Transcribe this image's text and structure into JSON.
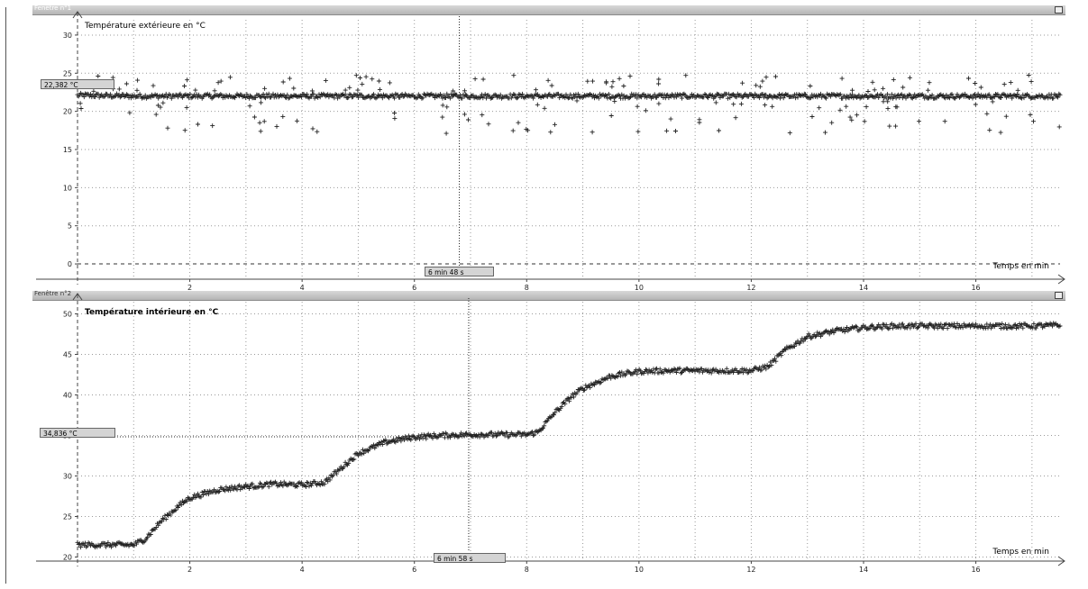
{
  "windows": [
    {
      "title": "Fenêtre n°1",
      "chart_title": "Température extérieure en °C",
      "x_axis_label": "Temps en min",
      "cursor_x_label": "6 min 48 s",
      "cursor_y_label": "22,382 °C",
      "x_ticks": [
        "2",
        "4",
        "6",
        "8",
        "10",
        "12",
        "14",
        "16"
      ],
      "y_ticks": [
        "0",
        "5",
        "10",
        "15",
        "20",
        "25",
        "30"
      ]
    },
    {
      "title": "Fenêtre n°2",
      "chart_title": "Température intérieure en °C",
      "x_axis_label": "Temps en min",
      "cursor_x_label": "6 min 58 s",
      "cursor_y_label": "34,836 °C",
      "x_ticks": [
        "2",
        "4",
        "6",
        "8",
        "10",
        "12",
        "14",
        "16"
      ],
      "y_ticks": [
        "20",
        "25",
        "30",
        "35",
        "40",
        "45",
        "50"
      ]
    }
  ],
  "chart_data": [
    {
      "type": "scatter",
      "title": "Température extérieure en °C",
      "xlabel": "Temps en min",
      "ylabel": "Température extérieure en °C",
      "xlim": [
        0,
        17.5
      ],
      "ylim": [
        -2,
        32
      ],
      "grid": true,
      "marker": "+",
      "series": [
        {
          "x": [
            0,
            1,
            2,
            3,
            4,
            5,
            6,
            7,
            8,
            9,
            10,
            11,
            12,
            13,
            14,
            15,
            16,
            17.5
          ],
          "y": [
            22.1,
            22.0,
            22.0,
            22.0,
            22.0,
            22.0,
            22.0,
            22.0,
            22.0,
            22.0,
            22.0,
            22.0,
            22.0,
            22.0,
            22.0,
            22.0,
            22.0,
            22.0
          ]
        }
      ],
      "cursor": {
        "x": 6.8,
        "y": 22.382
      }
    },
    {
      "type": "scatter",
      "title": "Température intérieure en °C",
      "xlabel": "Temps en min",
      "ylabel": "Température intérieure en °C",
      "xlim": [
        0,
        17.5
      ],
      "ylim": [
        19.5,
        51.5
      ],
      "grid": true,
      "marker": "+",
      "series": [
        {
          "x": [
            0,
            0.5,
            1,
            1.2,
            1.5,
            1.8,
            2,
            2.5,
            3,
            3.5,
            4,
            4.4,
            4.7,
            5,
            5.5,
            6,
            6.5,
            7,
            7.5,
            8,
            8.2,
            8.5,
            8.8,
            9,
            9.5,
            10,
            10.5,
            11,
            11.5,
            12,
            12.3,
            12.6,
            13,
            13.5,
            14,
            14.5,
            15,
            16,
            17,
            17.5
          ],
          "y": [
            21.5,
            21.5,
            21.5,
            22.2,
            24.5,
            26.3,
            27.3,
            28.3,
            28.7,
            29.0,
            28.9,
            29.2,
            31.0,
            32.8,
            34.2,
            34.8,
            35.0,
            35.1,
            35.1,
            35.1,
            35.4,
            37.8,
            39.8,
            40.8,
            42.3,
            42.9,
            43.0,
            43.0,
            43.0,
            43.0,
            43.5,
            45.5,
            47.2,
            47.9,
            48.3,
            48.5,
            48.5,
            48.5,
            48.5,
            48.6
          ]
        }
      ],
      "cursor": {
        "x": 6.967,
        "y": 34.836
      }
    }
  ],
  "colors": {
    "data": "#222222",
    "grid": "#9a9a9a",
    "axis": "#444444",
    "titlebar": "#c4c4c4"
  }
}
